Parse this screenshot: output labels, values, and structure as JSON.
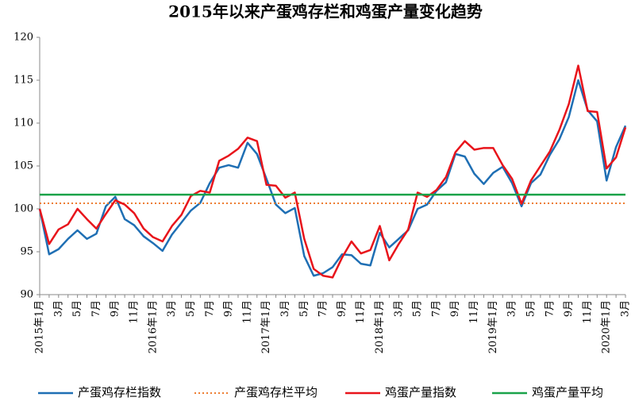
{
  "chart_data": {
    "type": "line",
    "title": "2015年以来产蛋鸡存栏和鸡蛋产量变化趋势",
    "categories": [
      "2015年1月",
      null,
      "3月",
      null,
      "5月",
      null,
      "7月",
      null,
      "9月",
      null,
      "11月",
      null,
      "2016年1月",
      null,
      "3月",
      null,
      "5月",
      null,
      "7月",
      null,
      "9月",
      null,
      "11月",
      null,
      "2017年1月",
      null,
      "3月",
      null,
      "5月",
      null,
      "7月",
      null,
      "9月",
      null,
      "11月",
      null,
      "2018年1月",
      null,
      "3月",
      null,
      "5月",
      null,
      "7月",
      null,
      "9月",
      null,
      "11月",
      null,
      "2019年1月",
      null,
      "3月",
      null,
      "5月",
      null,
      "7月",
      null,
      "9月",
      null,
      "11月",
      null,
      "2020年1月",
      null,
      "3月"
    ],
    "series": [
      {
        "name": "产蛋鸡存栏指数",
        "color": "#1f6fb4",
        "values": [
          100,
          94.7,
          95.3,
          96.5,
          97.5,
          96.5,
          97.1,
          100.3,
          101.4,
          98.8,
          98.1,
          96.8,
          96,
          95.1,
          97,
          98.4,
          99.8,
          100.7,
          103,
          104.8,
          105.1,
          104.8,
          107.7,
          106.4,
          103.5,
          100.5,
          99.5,
          100.1,
          94.5,
          92.2,
          92.5,
          93.2,
          94.7,
          94.6,
          93.6,
          93.4,
          97.2,
          95.5,
          96.5,
          97.5,
          100,
          100.5,
          102.1,
          103.1,
          106.4,
          106.1,
          104.1,
          102.9,
          104.2,
          104.9,
          103,
          100.3,
          103,
          104,
          106.3,
          108.1,
          110.7,
          115,
          111.5,
          110.2,
          103.3,
          107.2,
          109.7
        ]
      },
      {
        "name": "产蛋鸡存栏平均",
        "color": "#ed7d31",
        "style": "dotted",
        "value": 100.65
      },
      {
        "name": "鸡蛋产量指数",
        "color": "#e8141b",
        "values": [
          100,
          95.9,
          97.6,
          98.2,
          100,
          98.8,
          97.7,
          99.4,
          101,
          100.5,
          99.5,
          97.7,
          96.7,
          96.2,
          98,
          99.3,
          101.5,
          102.1,
          101.9,
          105.6,
          106.2,
          107,
          108.3,
          107.9,
          102.8,
          102.7,
          101.3,
          101.9,
          96.5,
          93,
          92.2,
          92,
          94.3,
          96.2,
          94.8,
          95.2,
          98,
          94,
          95.9,
          97.6,
          101.9,
          101.4,
          102.2,
          103.7,
          106.6,
          107.9,
          106.9,
          107.1,
          107.1,
          105.1,
          103.5,
          100.6,
          103.3,
          105,
          106.7,
          109.2,
          112.2,
          116.7,
          111.4,
          111.3,
          104.7,
          106,
          109.5
        ]
      },
      {
        "name": "鸡蛋产量平均",
        "color": "#1aa34a",
        "style": "solid",
        "value": 101.65
      }
    ],
    "ylim": [
      90,
      120
    ],
    "yticks": [
      90,
      95,
      100,
      105,
      110,
      115,
      120
    ]
  }
}
